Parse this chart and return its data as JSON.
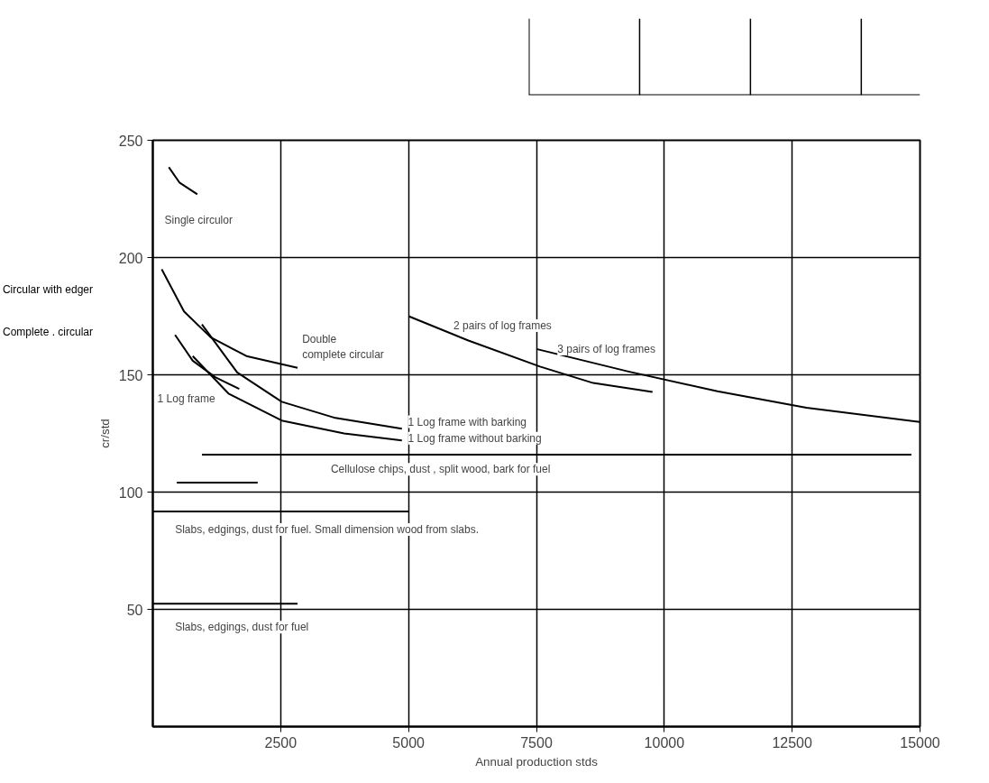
{
  "chart_data": [
    {
      "type": "line",
      "xlabel": "Annual production stds",
      "ylabel": "cr/std",
      "xlim": [
        0,
        15000
      ],
      "ylim": [
        0,
        250
      ],
      "xticks": [
        2500,
        5000,
        7500,
        10000,
        12500,
        15000
      ],
      "yticks": [
        50,
        100,
        150,
        200,
        250
      ],
      "grid": true,
      "marker": "none",
      "line_style": "solid",
      "series": [
        {
          "color": "#000000",
          "x": [
            313,
            520,
            870
          ],
          "values": [
            238.5,
            232,
            227
          ]
        },
        {
          "color": "#000000",
          "x": [
            174,
            610,
            1130,
            1830,
            2830
          ],
          "values": [
            195,
            177,
            166,
            158,
            153
          ]
        },
        {
          "color": "#000000",
          "x": [
            435,
            780,
            1220,
            1690
          ],
          "values": [
            167,
            156,
            149,
            144
          ]
        },
        {
          "color": "#000000",
          "x": [
            960,
            1650,
            2520,
            3570,
            4870
          ],
          "values": [
            171.5,
            151,
            138.5,
            131.6,
            127
          ]
        },
        {
          "color": "#000000",
          "x": [
            780,
            1480,
            2520,
            3740,
            4870
          ],
          "values": [
            158,
            142,
            130.5,
            125,
            122
          ]
        },
        {
          "color": "#000000",
          "x": [
            5000,
            6170,
            7570,
            8610,
            9770
          ],
          "values": [
            175,
            164.6,
            153.5,
            146.5,
            142.7
          ]
        },
        {
          "color": "#000000",
          "x": [
            7500,
            9300,
            11040,
            12780,
            15000
          ],
          "values": [
            161,
            151.4,
            143,
            136,
            129.9
          ]
        },
        {
          "color": "#000000",
          "x": [
            960,
            14830
          ],
          "values": [
            116,
            116
          ]
        },
        {
          "color": "#000000",
          "x": [
            470,
            2050
          ],
          "values": [
            104,
            104
          ]
        },
        {
          "color": "#000000",
          "x": [
            0,
            5000
          ],
          "values": [
            91.7,
            91.7
          ]
        },
        {
          "color": "#000000",
          "x": [
            0,
            2830
          ],
          "values": [
            52.4,
            52.4
          ]
        }
      ],
      "annotations": [
        "Single circulor",
        "Circular with edger",
        "Complete . circular",
        "1 Log frame",
        "Double\ncomplete circular",
        "1 Log frame with barking",
        "1 Log frame without barking",
        "2 pairs of log frames",
        "3 pairs of log frames",
        "Cellulose chips, dust , split wood, bark for fuel",
        "Slabs, edgings, dust for fuel. Small dimension wood from slabs.",
        "Slabs, edgings, dust for fuel"
      ]
    },
    {
      "type": "other",
      "annotations": [
        "2500",
        "5000",
        "7500"
      ]
    }
  ]
}
